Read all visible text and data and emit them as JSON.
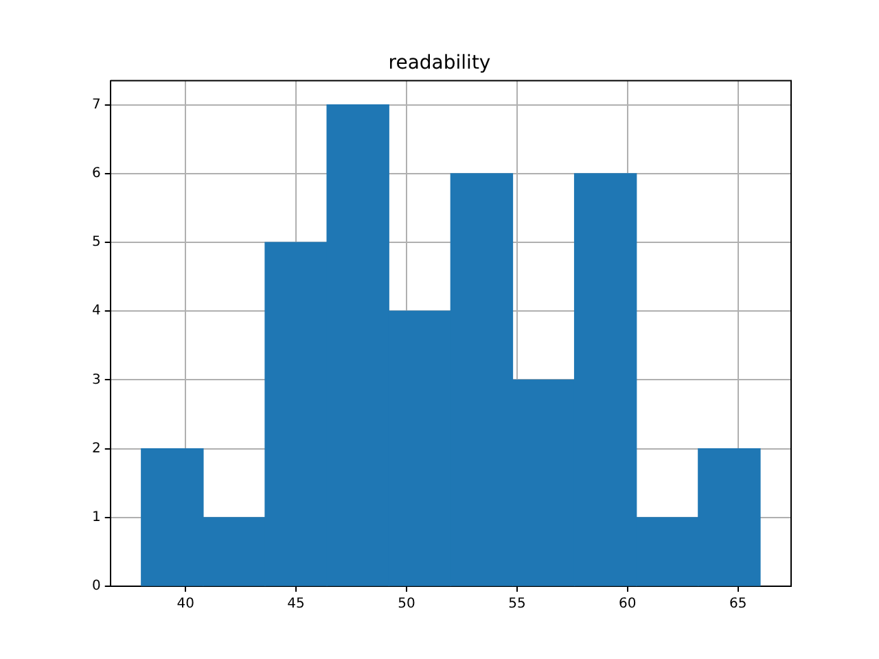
{
  "chart_data": {
    "type": "histogram",
    "title": "readability",
    "bins": [
      38,
      40.8,
      43.6,
      46.4,
      49.2,
      52,
      54.8,
      57.6,
      60.4,
      63.2,
      66
    ],
    "values": [
      2,
      1,
      5,
      7,
      4,
      6,
      3,
      6,
      1,
      2
    ],
    "color": "#1f77b4",
    "xlim": [
      36.6,
      67.4
    ],
    "xticks": [
      40,
      45,
      50,
      55,
      60,
      65
    ],
    "ylim": [
      0,
      7.35
    ],
    "yticks": [
      0,
      1,
      2,
      3,
      4,
      5,
      6,
      7
    ],
    "grid": true
  }
}
